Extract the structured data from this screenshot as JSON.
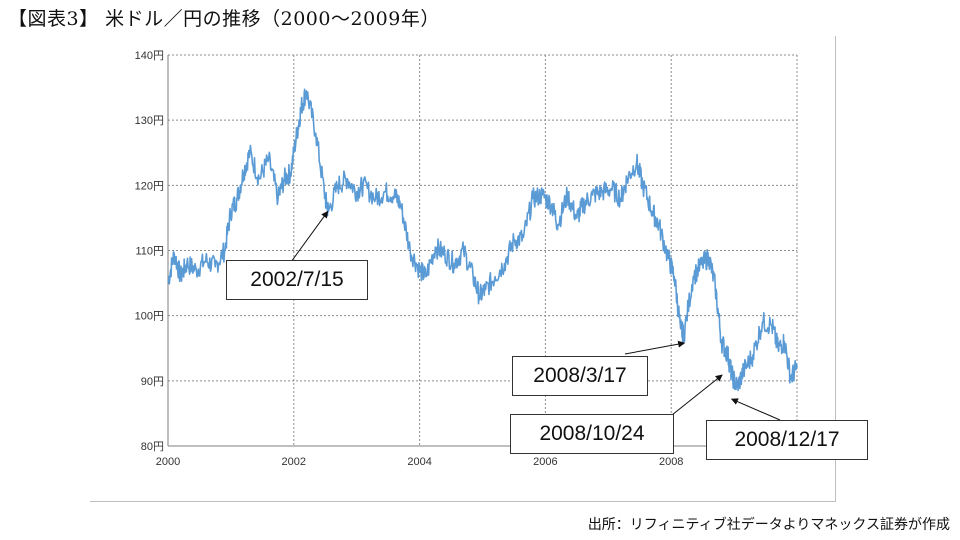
{
  "title": "【図表3】 米ドル／円の推移（2000～2009年）",
  "source": "出所：リフィニティブ社データよりマネックス証券が作成",
  "chart_data": {
    "type": "line",
    "title": "【図表3】 米ドル／円の推移（2000～2009年）",
    "xlabel": "",
    "ylabel": "",
    "xlim": [
      2000,
      2010
    ],
    "ylim": [
      80,
      140
    ],
    "x_ticks": [
      "2000",
      "2002",
      "2004",
      "2006",
      "2008"
    ],
    "y_ticks": [
      "80円",
      "90円",
      "100円",
      "110円",
      "120円",
      "130円",
      "140円"
    ],
    "grid": true,
    "line_color": "#5b9bd5",
    "series": [
      {
        "x": [
          2000.0,
          2000.1,
          2000.2,
          2000.3,
          2000.45,
          2000.6,
          2000.75,
          2000.9,
          2001.0,
          2001.1,
          2001.2,
          2001.3,
          2001.45,
          2001.6,
          2001.75,
          2001.85,
          2001.95,
          2002.05,
          2002.12,
          2002.2,
          2002.35,
          2002.5,
          2002.55,
          2002.7,
          2002.85,
          2003.0,
          2003.1,
          2003.3,
          2003.45,
          2003.6,
          2003.7,
          2003.85,
          2004.0,
          2004.1,
          2004.25,
          2004.4,
          2004.55,
          2004.7,
          2004.85,
          2004.95,
          2005.05,
          2005.2,
          2005.35,
          2005.5,
          2005.65,
          2005.8,
          2005.95,
          2006.1,
          2006.2,
          2006.35,
          2006.5,
          2006.6,
          2006.75,
          2006.9,
          2007.05,
          2007.2,
          2007.3,
          2007.45,
          2007.55,
          2007.7,
          2007.8,
          2007.95,
          2008.05,
          2008.15,
          2008.2,
          2008.35,
          2008.5,
          2008.6,
          2008.7,
          2008.8,
          2008.9,
          2008.96,
          2009.05,
          2009.15,
          2009.3,
          2009.45,
          2009.6,
          2009.7,
          2009.8,
          2009.9,
          2010.0
        ],
        "y": [
          105.2,
          109.5,
          106.0,
          108.0,
          107.0,
          108.5,
          107.5,
          110.0,
          116.0,
          118.0,
          122.0,
          125.0,
          121.0,
          124.0,
          118.0,
          121.0,
          122.0,
          128.0,
          132.0,
          134.5,
          128.0,
          118.0,
          116.0,
          120.0,
          121.0,
          119.0,
          120.0,
          118.0,
          119.0,
          118.5,
          117.0,
          110.0,
          107.0,
          106.0,
          110.5,
          109.5,
          108.0,
          110.0,
          106.0,
          103.0,
          104.0,
          106.0,
          108.0,
          111.5,
          112.0,
          118.0,
          118.5,
          117.0,
          114.0,
          118.5,
          115.0,
          117.0,
          118.5,
          119.0,
          119.5,
          118.0,
          121.0,
          123.5,
          120.0,
          116.0,
          114.0,
          109.0,
          106.0,
          98.0,
          97.0,
          106.0,
          108.0,
          109.0,
          104.5,
          96.0,
          94.0,
          91.0,
          89.0,
          91.5,
          94.0,
          99.0,
          98.5,
          95.0,
          96.0,
          90.5,
          92.0
        ]
      }
    ],
    "annotations": [
      {
        "label": "2002/7/15",
        "x": 2002.54,
        "y": 116.0
      },
      {
        "label": "2008/3/17",
        "x": 2008.21,
        "y": 95.8
      },
      {
        "label": "2008/10/24",
        "x": 2008.81,
        "y": 90.9
      },
      {
        "label": "2008/12/17",
        "x": 2008.96,
        "y": 87.2
      }
    ]
  }
}
